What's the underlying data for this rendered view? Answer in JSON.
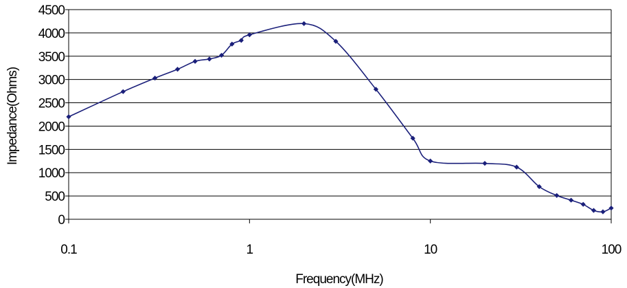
{
  "chart_data": {
    "type": "line",
    "title": "",
    "xlabel": "Frequency(MHz)",
    "ylabel": "Impedance(Ohms)",
    "x_scale": "log",
    "xlim": [
      0.1,
      100
    ],
    "ylim": [
      0,
      4500
    ],
    "grid": "horizontal",
    "legend": "none",
    "series_color": "#1a1f7a",
    "x_ticks": [
      {
        "value": 0.1,
        "label": "0.1"
      },
      {
        "value": 1,
        "label": "1"
      },
      {
        "value": 10,
        "label": "10"
      },
      {
        "value": 100,
        "label": "100"
      }
    ],
    "y_ticks": [
      {
        "value": 0,
        "label": "0"
      },
      {
        "value": 500,
        "label": "500"
      },
      {
        "value": 1000,
        "label": "1000"
      },
      {
        "value": 1500,
        "label": "1500"
      },
      {
        "value": 2000,
        "label": "2000"
      },
      {
        "value": 2500,
        "label": "2500"
      },
      {
        "value": 3000,
        "label": "3000"
      },
      {
        "value": 3500,
        "label": "3500"
      },
      {
        "value": 4000,
        "label": "4000"
      },
      {
        "value": 4500,
        "label": "4500"
      }
    ],
    "series": [
      {
        "x": [
          0.1,
          0.2,
          0.3,
          0.4,
          0.5,
          0.6,
          0.7,
          0.8,
          0.9,
          1,
          2,
          3,
          5,
          8,
          10,
          20,
          30,
          40,
          50,
          60,
          70,
          80,
          90,
          100
        ],
        "y": [
          2200,
          2740,
          3030,
          3220,
          3390,
          3440,
          3520,
          3760,
          3840,
          3960,
          4200,
          3820,
          2790,
          1740,
          1250,
          1200,
          1120,
          700,
          510,
          410,
          320,
          190,
          160,
          240
        ]
      }
    ]
  }
}
